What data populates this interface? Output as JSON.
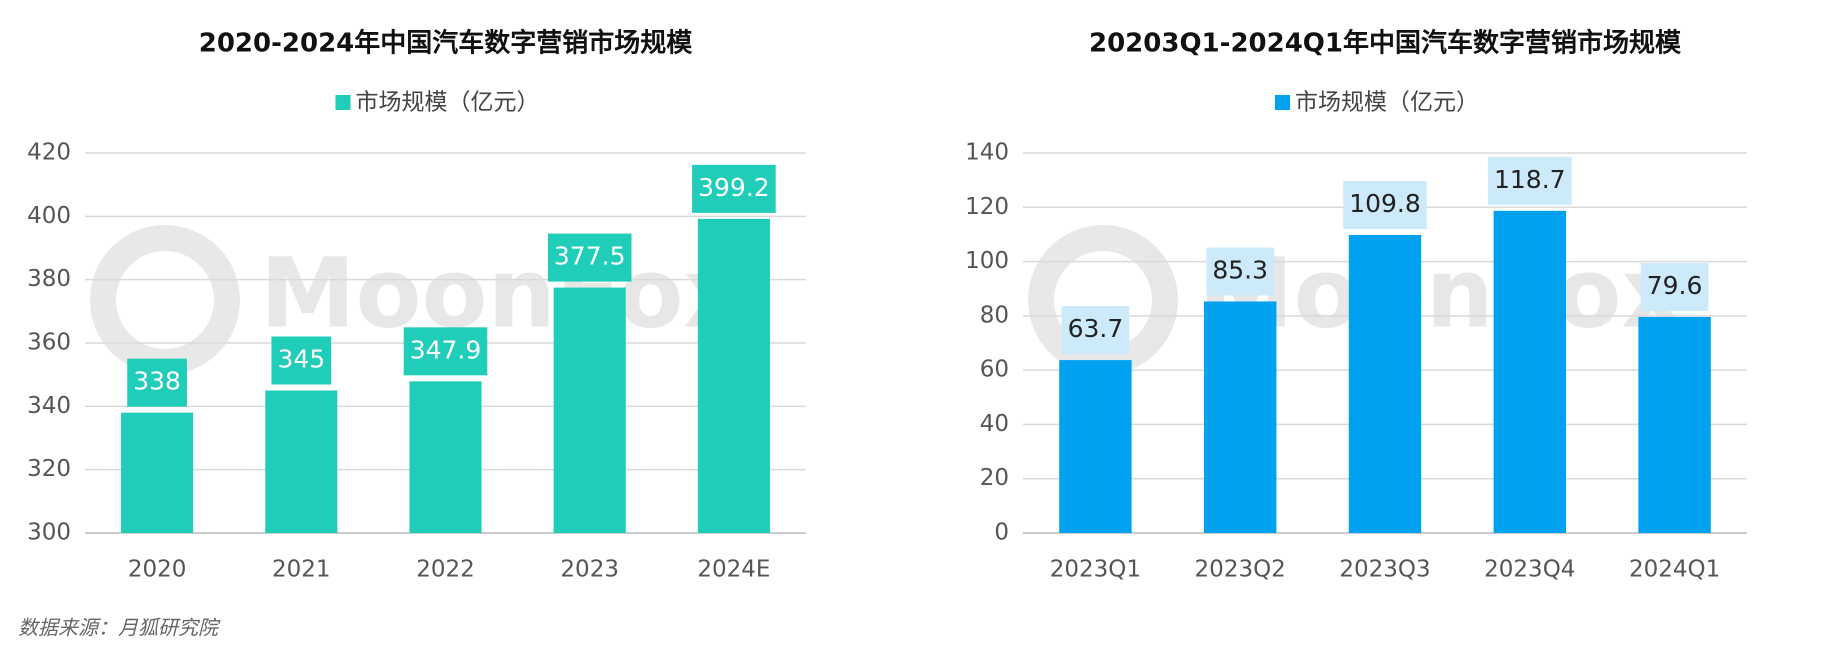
{
  "chart_data": [
    {
      "type": "bar",
      "title": "2020-2024年中国汽车数字营销市场规模",
      "legend": "市场规模（亿元）",
      "watermark": "MoonFox",
      "categories": [
        "2020",
        "2021",
        "2022",
        "2023",
        "2024E"
      ],
      "values": [
        338,
        345,
        347.9,
        377.5,
        399.2
      ],
      "color": "#1fcdb9",
      "label_box_color": "#1fcdb9",
      "label_text_color": "#ffffff",
      "ylim": [
        300,
        420
      ],
      "yticks": [
        300,
        320,
        340,
        360,
        380,
        400,
        420
      ],
      "grid": true
    },
    {
      "type": "bar",
      "title": "20203Q1-2024Q1年中国汽车数字营销市场规模",
      "legend": "市场规模（亿元）",
      "watermark": "MoonFox",
      "categories": [
        "2023Q1",
        "2023Q2",
        "2023Q3",
        "2023Q4",
        "2024Q1"
      ],
      "values": [
        63.7,
        85.3,
        109.8,
        118.7,
        79.6
      ],
      "color": "#00a2ef",
      "label_box_color": "#cdeafb",
      "label_text_color": "#222222",
      "ylim": [
        0,
        140
      ],
      "yticks": [
        0,
        20,
        40,
        60,
        80,
        100,
        120,
        140
      ],
      "grid": true
    }
  ],
  "source": "数据来源：月狐研究院"
}
